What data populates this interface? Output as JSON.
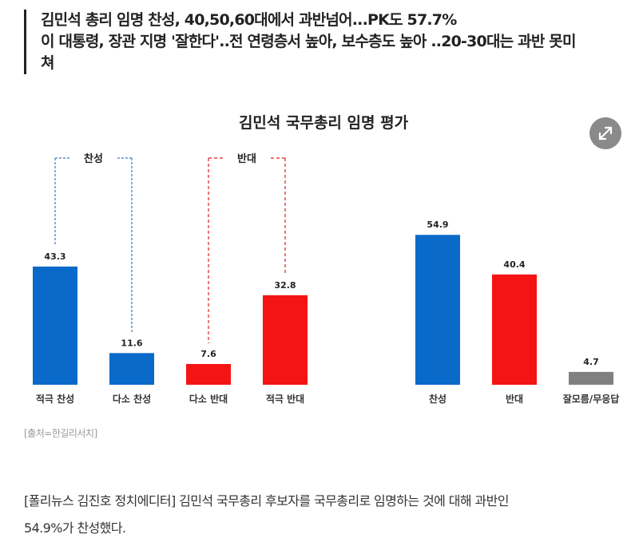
{
  "article": {
    "subhead_lines": [
      "김민석 총리 임명 찬성, 40,50,60대에서 과반넘어...PK도 57.7%",
      "이 대통령, 장관 지명 '잘한다'..전 연령층서 높아, 보수층도 높아 ..20-30대는 과반 못미",
      "쳐"
    ],
    "source": "[출처=한길리서치]",
    "body_lines": [
      "[폴리뉴스 김진호 정치에디터] 김민석 국무총리 후보자를 국무총리로 임명하는 것에 대해 과반인",
      "54.9%가 찬성했다."
    ]
  },
  "expand_icon": "expand-arrows-icon",
  "chart_data": {
    "type": "bar",
    "title": "김민석 국무총리 임명 평가",
    "groups": [
      {
        "label": "찬성",
        "color": "#3a79c6",
        "categories": [
          "적극 찬성",
          "다소 찬성"
        ],
        "values": [
          43.3,
          11.6
        ],
        "colors": [
          "#0a6ac9",
          "#0a6ac9"
        ]
      },
      {
        "label": "반대",
        "color": "#e02020",
        "categories": [
          "다소 반대",
          "적극 반대"
        ],
        "values": [
          7.6,
          32.8
        ],
        "colors": [
          "#f51414",
          "#f51414"
        ]
      }
    ],
    "totals": {
      "categories": [
        "찬성",
        "반대",
        "잘모름/무응답"
      ],
      "values": [
        54.9,
        40.4,
        4.7
      ],
      "colors": [
        "#0a6ac9",
        "#f51414",
        "#808080"
      ]
    },
    "grid": false
  }
}
